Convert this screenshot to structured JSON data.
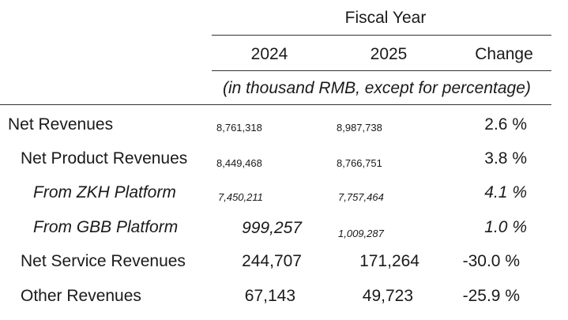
{
  "header": {
    "group_title": "Fiscal Year",
    "col_2024": "2024",
    "col_2025": "2025",
    "col_change": "Change",
    "units_note": "(in thousand RMB, except for percentage)"
  },
  "rows": [
    {
      "label": "Net Revenues",
      "v2024": "8,761,318",
      "v2025": "8,987,738",
      "change": "2.6 %"
    },
    {
      "label": "Net Product Revenues",
      "v2024": "8,449,468",
      "v2025": "8,766,751",
      "change": "3.8 %"
    },
    {
      "label": "From ZKH Platform",
      "v2024": "7,450,211",
      "v2025": "7,757,464",
      "change": "4.1 %"
    },
    {
      "label": "From GBB Platform",
      "v2024": "999,257",
      "v2025": "1,009,287",
      "change": "1.0 %"
    },
    {
      "label": "Net Service Revenues",
      "v2024": "244,707",
      "v2025": "171,264",
      "change": "-30.0 %"
    },
    {
      "label": "Other Revenues",
      "v2024": "67,143",
      "v2025": "49,723",
      "change": "-25.9 %"
    }
  ]
}
